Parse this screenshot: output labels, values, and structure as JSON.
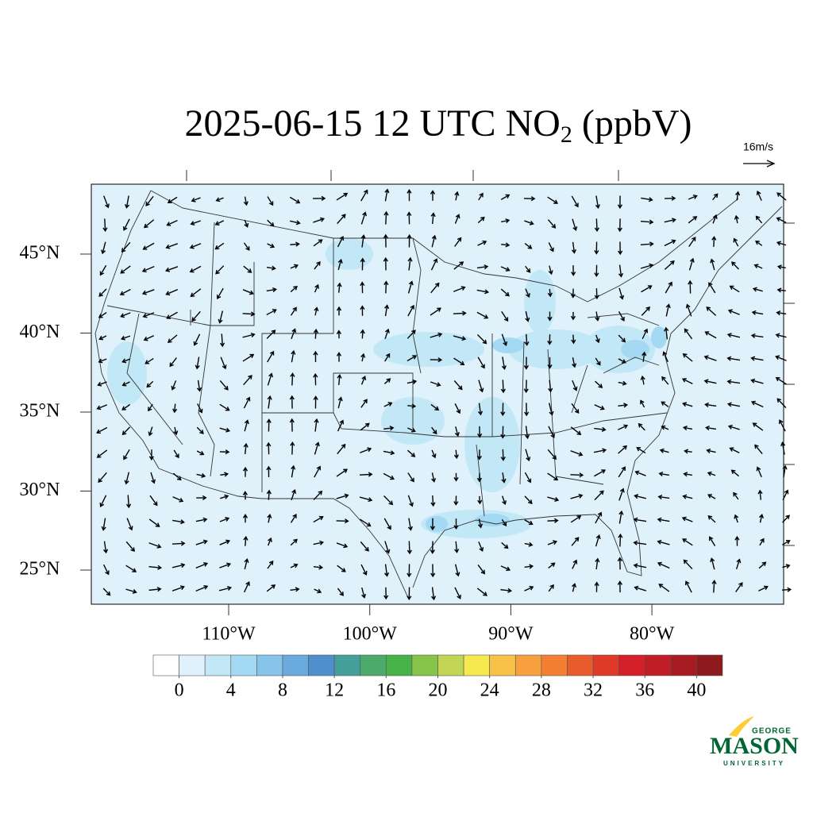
{
  "header": {
    "title_main": "2025-06-15 12 UTC NO",
    "title_subscript": "2",
    "title_suffix": " (ppbV)"
  },
  "wind_key": {
    "label": "16m/s"
  },
  "map": {
    "lat_ticks": [
      {
        "value": 45,
        "label": "45°N"
      },
      {
        "value": 40,
        "label": "40°N"
      },
      {
        "value": 35,
        "label": "35°N"
      },
      {
        "value": 30,
        "label": "30°N"
      },
      {
        "value": 25,
        "label": "25°N"
      }
    ],
    "lon_ticks": [
      {
        "value": -110,
        "label": "110°W"
      },
      {
        "value": -100,
        "label": "100°W"
      },
      {
        "value": -90,
        "label": "90°W"
      },
      {
        "value": -80,
        "label": "80°W"
      }
    ]
  },
  "colorbar": {
    "range": [
      -2,
      42
    ],
    "ticks": [
      0,
      4,
      8,
      12,
      16,
      20,
      24,
      28,
      32,
      36,
      40
    ],
    "colors": [
      "#ffffff",
      "#dff2fb",
      "#c2e7f6",
      "#a3d9f2",
      "#86c4ea",
      "#6aaadc",
      "#4f8fcd",
      "#45a09c",
      "#4caa6a",
      "#46b348",
      "#86c44a",
      "#c3d554",
      "#f6e84f",
      "#f8c147",
      "#f8a040",
      "#f47f32",
      "#ea5b2c",
      "#e03a2a",
      "#d42028",
      "#c01d26",
      "#a81b23",
      "#8f1a1e"
    ]
  },
  "logo": {
    "top": "GEORGE",
    "main": "MASON",
    "bottom": "UNIVERSITY"
  }
}
